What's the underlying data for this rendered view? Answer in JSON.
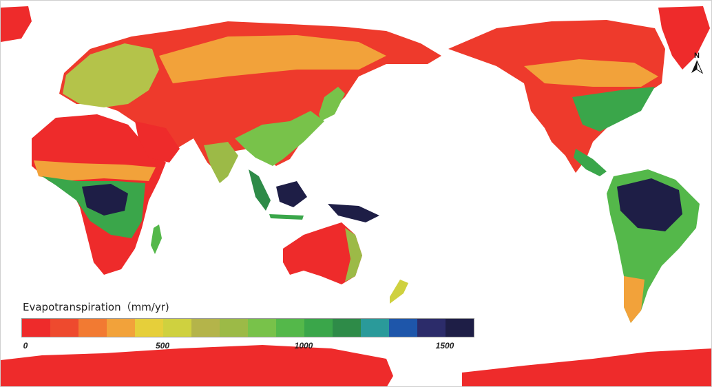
{
  "legend": {
    "title": "Evapotranspiration（mm/yr)",
    "ticks": [
      {
        "label": "0",
        "value": 0
      },
      {
        "label": "500",
        "value": 500
      },
      {
        "label": "1000",
        "value": 1000
      },
      {
        "label": "1500",
        "value": 1500
      }
    ],
    "range": [
      0,
      1600
    ],
    "colors": [
      "#ee2b2b",
      "#ee4a2e",
      "#f27a32",
      "#f2a23a",
      "#e6cf3a",
      "#cfd13f",
      "#b4b44a",
      "#9cba47",
      "#78c24a",
      "#54b84a",
      "#3aa64a",
      "#2e8b48",
      "#2a9a9a",
      "#1e56aa",
      "#2c2c6a",
      "#1e1e46"
    ]
  },
  "north_arrow": {
    "label": "N"
  },
  "palette": {
    "dry": "#ee2b2b",
    "semi_dry": "#f2a23a",
    "mid": "#9cba47",
    "wet": "#3aa64a",
    "very_wet": "#1e1e46",
    "polar": "#ee2b2b"
  }
}
